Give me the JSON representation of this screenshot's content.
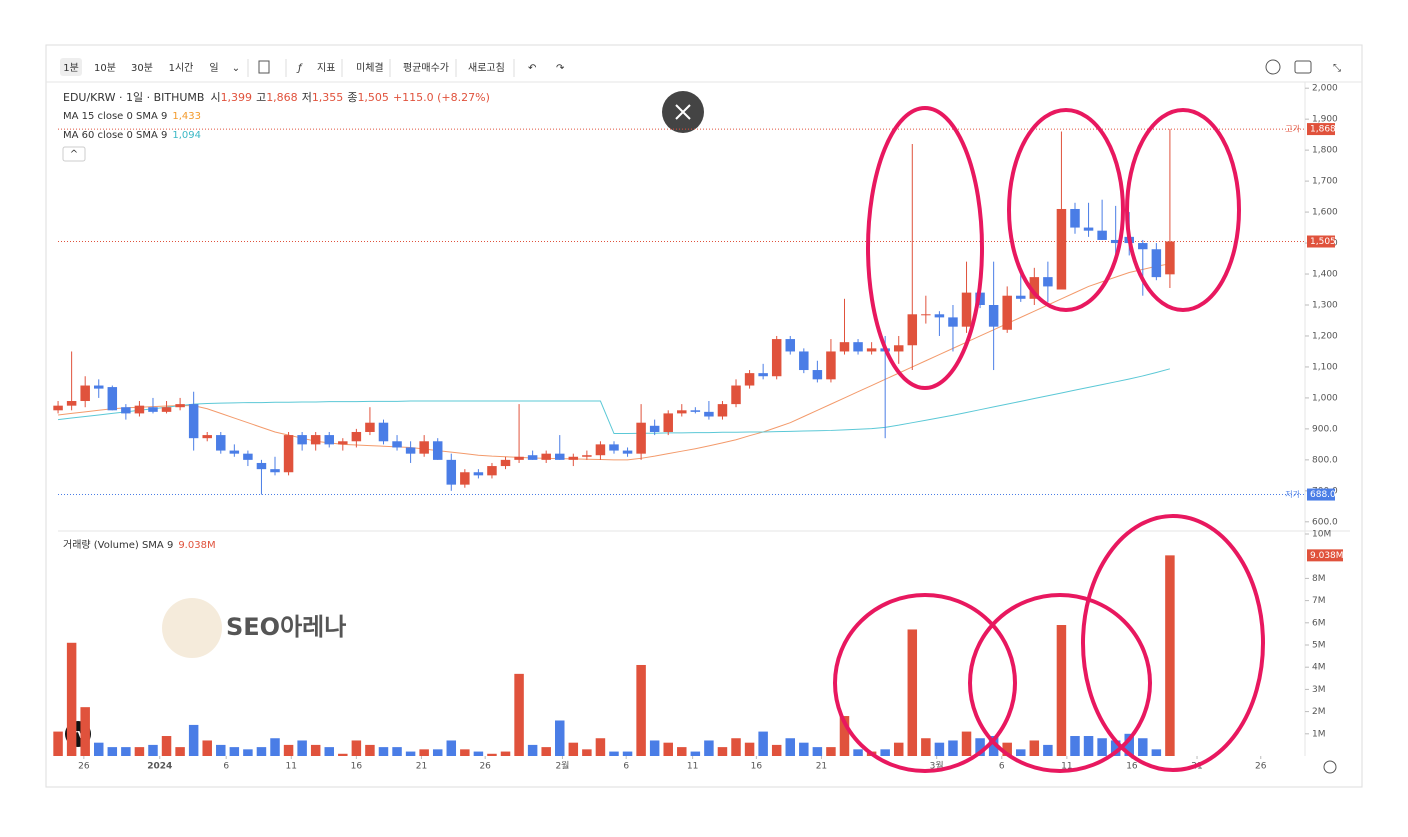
{
  "toolbar": {
    "intervals": [
      "1분",
      "10분",
      "30분",
      "1시간",
      "일"
    ],
    "buttons": [
      "지표",
      "미체결",
      "평균매수가",
      "새로고침"
    ]
  },
  "watermark": "SEO아레나",
  "chart_data": {
    "type": "candlestick",
    "title": "EDU/KRW · 1일 · BITHUMB",
    "ohlc_keys": {
      "open": "시",
      "high": "고",
      "low": "저",
      "close": "종"
    },
    "last_labels": {
      "open": "1,399",
      "high": "1,868",
      "low": "1,355",
      "close": "1,505",
      "change": "+115.0 (+8.27%)"
    },
    "up_color": "#e0523c",
    "down_color": "#4a7de6",
    "categories": null,
    "open": [
      960,
      975,
      990,
      1040,
      1035,
      970,
      950,
      970,
      955,
      970,
      980,
      870,
      880,
      830,
      820,
      790,
      770,
      760,
      880,
      850,
      880,
      850,
      860,
      890,
      920,
      860,
      840,
      820,
      860,
      800,
      720,
      760,
      750,
      780,
      800,
      815,
      800,
      820,
      800,
      810,
      815,
      850,
      830,
      820,
      910,
      890,
      950,
      960,
      955,
      940,
      980,
      1040,
      1080,
      1070,
      1190,
      1150,
      1090,
      1060,
      1150,
      1180,
      1150,
      1160,
      1150,
      1170,
      1270,
      1270,
      1260,
      1230,
      1340,
      1300,
      1220,
      1330,
      1320,
      1390,
      1350,
      1610,
      1550,
      1540,
      1510,
      1520,
      1500,
      1480,
      1399
    ],
    "high": [
      990,
      1150,
      1070,
      1060,
      1040,
      980,
      990,
      1000,
      990,
      1000,
      1020,
      890,
      890,
      850,
      830,
      800,
      810,
      890,
      890,
      890,
      890,
      870,
      900,
      970,
      930,
      880,
      860,
      880,
      870,
      820,
      770,
      770,
      790,
      810,
      980,
      830,
      830,
      880,
      820,
      830,
      860,
      860,
      840,
      980,
      930,
      960,
      980,
      970,
      990,
      990,
      1060,
      1090,
      1110,
      1200,
      1200,
      1160,
      1120,
      1190,
      1320,
      1190,
      1180,
      1200,
      1200,
      1820,
      1330,
      1280,
      1300,
      1440,
      1360,
      1440,
      1360,
      1410,
      1420,
      1440,
      1860,
      1630,
      1630,
      1640,
      1620,
      1600,
      1510,
      1500,
      1868
    ],
    "low": [
      950,
      960,
      970,
      1000,
      960,
      930,
      940,
      950,
      950,
      960,
      830,
      860,
      820,
      810,
      780,
      688,
      750,
      750,
      830,
      830,
      840,
      830,
      840,
      880,
      850,
      830,
      790,
      810,
      800,
      700,
      710,
      740,
      740,
      770,
      790,
      800,
      790,
      800,
      780,
      800,
      800,
      820,
      810,
      800,
      880,
      880,
      940,
      950,
      930,
      930,
      970,
      1030,
      1060,
      1060,
      1140,
      1080,
      1050,
      1050,
      1140,
      1140,
      1140,
      870,
      1110,
      1090,
      1240,
      1200,
      1150,
      1210,
      1290,
      1090,
      1210,
      1310,
      1300,
      1310,
      1350,
      1530,
      1520,
      1510,
      1460,
      1460,
      1330,
      1380,
      1355
    ],
    "close": [
      975,
      990,
      1040,
      1030,
      960,
      950,
      975,
      955,
      970,
      980,
      870,
      880,
      830,
      820,
      800,
      770,
      760,
      880,
      850,
      880,
      850,
      860,
      890,
      920,
      860,
      840,
      820,
      860,
      800,
      720,
      760,
      750,
      780,
      800,
      810,
      800,
      820,
      800,
      810,
      815,
      850,
      830,
      820,
      920,
      890,
      950,
      960,
      955,
      940,
      980,
      1040,
      1080,
      1070,
      1190,
      1150,
      1090,
      1060,
      1150,
      1180,
      1150,
      1160,
      1150,
      1170,
      1270,
      1270,
      1260,
      1230,
      1340,
      1300,
      1230,
      1330,
      1320,
      1390,
      1360,
      1610,
      1550,
      1540,
      1510,
      1500,
      1500,
      1480,
      1390,
      1505
    ],
    "ma": [
      {
        "name": "MA 15 close 0 SMA 9",
        "color": "#f39a6b",
        "last_label": "1,433",
        "values": [
          945,
          950,
          955,
          960,
          965,
          968,
          970,
          972,
          974,
          975,
          975,
          965,
          950,
          935,
          920,
          905,
          890,
          880,
          870,
          860,
          855,
          850,
          848,
          846,
          844,
          842,
          840,
          835,
          830,
          825,
          820,
          815,
          812,
          810,
          808,
          806,
          805,
          804,
          803,
          802,
          801,
          800,
          800,
          805,
          812,
          820,
          828,
          836,
          845,
          855,
          865,
          878,
          890,
          905,
          920,
          940,
          960,
          980,
          1000,
          1020,
          1040,
          1060,
          1080,
          1100,
          1120,
          1140,
          1160,
          1180,
          1200,
          1220,
          1240,
          1260,
          1280,
          1300,
          1320,
          1340,
          1360,
          1375,
          1390,
          1405,
          1415,
          1425,
          1433
        ]
      },
      {
        "name": "MA 60 close 0 SMA 9",
        "color": "#5bc8d6",
        "last_label": "1,094",
        "values": [
          930,
          935,
          940,
          945,
          950,
          955,
          960,
          965,
          970,
          975,
          980,
          982,
          983,
          984,
          985,
          985,
          986,
          986,
          987,
          987,
          988,
          988,
          988,
          989,
          989,
          989,
          990,
          990,
          990,
          990,
          990,
          990,
          990,
          990,
          990,
          990,
          990,
          990,
          990,
          990,
          990,
          885,
          885,
          886,
          886,
          887,
          887,
          888,
          888,
          889,
          889,
          890,
          890,
          891,
          892,
          893,
          894,
          895,
          897,
          899,
          901,
          905,
          912,
          920,
          928,
          936,
          944,
          953,
          962,
          971,
          980,
          989,
          998,
          1007,
          1016,
          1025,
          1034,
          1043,
          1052,
          1061,
          1071,
          1082,
          1094
        ]
      }
    ],
    "high_line": {
      "label": "고가",
      "value": 1868
    },
    "low_line": {
      "label": "저가",
      "value": 688,
      "value_label": "688.0"
    },
    "xlim": [
      -0.3,
      92
    ],
    "xticks": [
      {
        "value": 1.9,
        "label": "26"
      },
      {
        "value": 7.5,
        "label": "2024"
      },
      {
        "value": 12.4,
        "label": "6"
      },
      {
        "value": 17.2,
        "label": "11"
      },
      {
        "value": 22,
        "label": "16"
      },
      {
        "value": 26.8,
        "label": "21"
      },
      {
        "value": 31.5,
        "label": "26"
      },
      {
        "value": 37.2,
        "label": "2월"
      },
      {
        "value": 41.9,
        "label": "6"
      },
      {
        "value": 46.8,
        "label": "11"
      },
      {
        "value": 51.5,
        "label": "16"
      },
      {
        "value": 56.3,
        "label": "21"
      },
      {
        "value": 64.8,
        "label": "3월"
      },
      {
        "value": 69.6,
        "label": "6"
      },
      {
        "value": 74.4,
        "label": "11"
      },
      {
        "value": 79.2,
        "label": "16"
      },
      {
        "value": 84,
        "label": "21"
      },
      {
        "value": 88.7,
        "label": "26"
      }
    ],
    "ylim": [
      580,
      2020
    ],
    "yticks": [
      {
        "value": 600,
        "label": "600.0"
      },
      {
        "value": 700,
        "label": "700.0"
      },
      {
        "value": 800,
        "label": "800.0"
      },
      {
        "value": 900,
        "label": "900.0"
      },
      {
        "value": 1000,
        "label": "1,000"
      },
      {
        "value": 1100,
        "label": "1,100"
      },
      {
        "value": 1200,
        "label": "1,200"
      },
      {
        "value": 1300,
        "label": "1,300"
      },
      {
        "value": 1400,
        "label": "1,400"
      },
      {
        "value": 1500,
        "label": "1,500"
      },
      {
        "value": 1600,
        "label": "1,600"
      },
      {
        "value": 1700,
        "label": "1,700"
      },
      {
        "value": 1800,
        "label": "1,800"
      },
      {
        "value": 1900,
        "label": "1,900"
      },
      {
        "value": 2000,
        "label": "2,000"
      }
    ],
    "volume": {
      "name": "거래량 (Volume) SMA 9",
      "last_label": "9.038M",
      "ylim": [
        0,
        10
      ],
      "yticks": [
        {
          "value": 1,
          "label": "1M"
        },
        {
          "value": 2,
          "label": "2M"
        },
        {
          "value": 3,
          "label": "3M"
        },
        {
          "value": 4,
          "label": "4M"
        },
        {
          "value": 5,
          "label": "5M"
        },
        {
          "value": 6,
          "label": "6M"
        },
        {
          "value": 7,
          "label": "7M"
        },
        {
          "value": 8,
          "label": "8M"
        },
        {
          "value": 10,
          "label": "10M"
        }
      ],
      "values": [
        1.1,
        5.1,
        2.2,
        0.6,
        0.4,
        0.4,
        0.4,
        0.5,
        0.9,
        0.4,
        1.4,
        0.7,
        0.5,
        0.4,
        0.3,
        0.4,
        0.8,
        0.5,
        0.7,
        0.5,
        0.4,
        0.1,
        0.7,
        0.5,
        0.4,
        0.4,
        0.2,
        0.3,
        0.3,
        0.7,
        0.3,
        0.2,
        0.1,
        0.2,
        3.7,
        0.5,
        0.4,
        1.6,
        0.6,
        0.3,
        0.8,
        0.2,
        0.2,
        4.1,
        0.7,
        0.6,
        0.4,
        0.2,
        0.7,
        0.4,
        0.8,
        0.6,
        1.1,
        0.5,
        0.8,
        0.6,
        0.4,
        0.4,
        1.8,
        0.3,
        0.2,
        0.3,
        0.6,
        5.7,
        0.8,
        0.6,
        0.7,
        1.1,
        0.8,
        0.9,
        0.6,
        0.3,
        0.7,
        0.5,
        5.9,
        0.9,
        0.9,
        0.8,
        0.7,
        1.0,
        0.8,
        0.3,
        9.038
      ]
    }
  }
}
